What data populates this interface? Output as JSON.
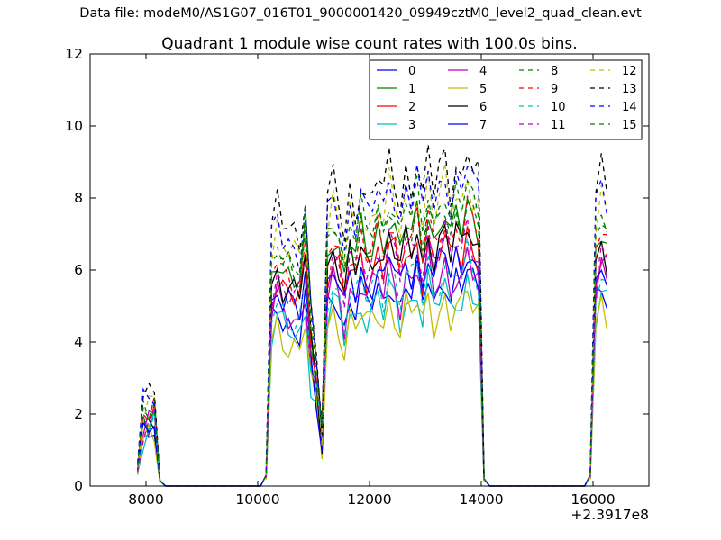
{
  "figure": {
    "suptitle": "Data file: modeM0/AS1G07_016T01_9000001420_09949cztM0_level2_quad_clean.evt"
  },
  "chart_data": {
    "type": "line",
    "title": "Quadrant 1 module wise count rates with 100.0s bins.",
    "xlabel": "",
    "ylabel": "",
    "xlim": [
      7000,
      17000
    ],
    "ylim": [
      0,
      12
    ],
    "x_offset_label": "+2.3917e8",
    "xticks": [
      8000,
      10000,
      12000,
      14000,
      16000
    ],
    "xtick_labels": [
      "8000",
      "10000",
      "12000",
      "14000",
      "16000"
    ],
    "yticks": [
      0,
      2,
      4,
      6,
      8,
      10,
      12
    ],
    "ytick_labels": [
      "0",
      "2",
      "4",
      "6",
      "8",
      "10",
      "12"
    ],
    "grid": false,
    "legend_position": "top-right",
    "legend_columns": 4,
    "segments": [
      {
        "x": [
          7850,
          7950,
          8050,
          8150,
          8250
        ]
      },
      {
        "x": [
          10150,
          10250,
          10350,
          10450,
          10550,
          10650,
          10750,
          10850,
          10950,
          11050,
          11150,
          11250,
          11350,
          11450,
          11550,
          11650,
          11750,
          11850,
          11950,
          12050,
          12150,
          12250,
          12350,
          12450,
          12550,
          12650,
          12750,
          12850,
          12950,
          13050,
          13150,
          13250,
          13350,
          13450,
          13550,
          13650,
          13750,
          13850,
          13950,
          14050
        ]
      },
      {
        "x": [
          15950,
          16050,
          16150,
          16250
        ]
      }
    ],
    "gaps": [
      {
        "x": [
          8250,
          8350,
          10050,
          10150
        ],
        "y": [
          0.15,
          0,
          0,
          0.3
        ]
      },
      {
        "x": [
          14050,
          14150,
          15850,
          15950
        ],
        "y": [
          0.2,
          0,
          0,
          0.3
        ]
      }
    ],
    "base_shape": [
      [
        0.5,
        1.6,
        1.7,
        1.9,
        0.15
      ],
      [
        0.3,
        5.0,
        5.5,
        5.1,
        5.0,
        4.9,
        4.8,
        5.8,
        3.5,
        2.6,
        1.2,
        5.5,
        6.0,
        5.6,
        4.8,
        5.8,
        5.4,
        6.0,
        5.5,
        5.7,
        6.1,
        5.6,
        6.4,
        6.0,
        5.4,
        6.2,
        5.9,
        6.4,
        5.5,
        6.6,
        5.7,
        6.1,
        6.5,
        5.8,
        6.3,
        6.0,
        6.7,
        6.2,
        6.0,
        0.2
      ],
      [
        0.3,
        5.6,
        6.2,
        5.8
      ]
    ],
    "series": [
      {
        "name": "0",
        "color": "#0000ff",
        "dashed": false,
        "scale": 0.9
      },
      {
        "name": "1",
        "color": "#008000",
        "dashed": false,
        "scale": 1.18
      },
      {
        "name": "2",
        "color": "#ff0000",
        "dashed": false,
        "scale": 1.06
      },
      {
        "name": "3",
        "color": "#00bfbf",
        "dashed": false,
        "scale": 0.85
      },
      {
        "name": "4",
        "color": "#bf00bf",
        "dashed": false,
        "scale": 0.95
      },
      {
        "name": "5",
        "color": "#bfbf00",
        "dashed": false,
        "scale": 0.8
      },
      {
        "name": "6",
        "color": "#000000",
        "dashed": false,
        "scale": 1.1
      },
      {
        "name": "7",
        "color": "#0000ff",
        "dashed": false,
        "scale": 1.0
      },
      {
        "name": "8",
        "color": "#008000",
        "dashed": true,
        "scale": 1.2
      },
      {
        "name": "9",
        "color": "#ff0000",
        "dashed": true,
        "scale": 1.15
      },
      {
        "name": "10",
        "color": "#00bfbf",
        "dashed": true,
        "scale": 0.95
      },
      {
        "name": "11",
        "color": "#bf00bf",
        "dashed": true,
        "scale": 1.08
      },
      {
        "name": "12",
        "color": "#bfbf00",
        "dashed": true,
        "scale": 1.3
      },
      {
        "name": "13",
        "color": "#000000",
        "dashed": true,
        "scale": 1.42
      },
      {
        "name": "14",
        "color": "#0000ff",
        "dashed": true,
        "scale": 1.35
      },
      {
        "name": "15",
        "color": "#008000",
        "dashed": true,
        "scale": 1.27
      }
    ]
  }
}
